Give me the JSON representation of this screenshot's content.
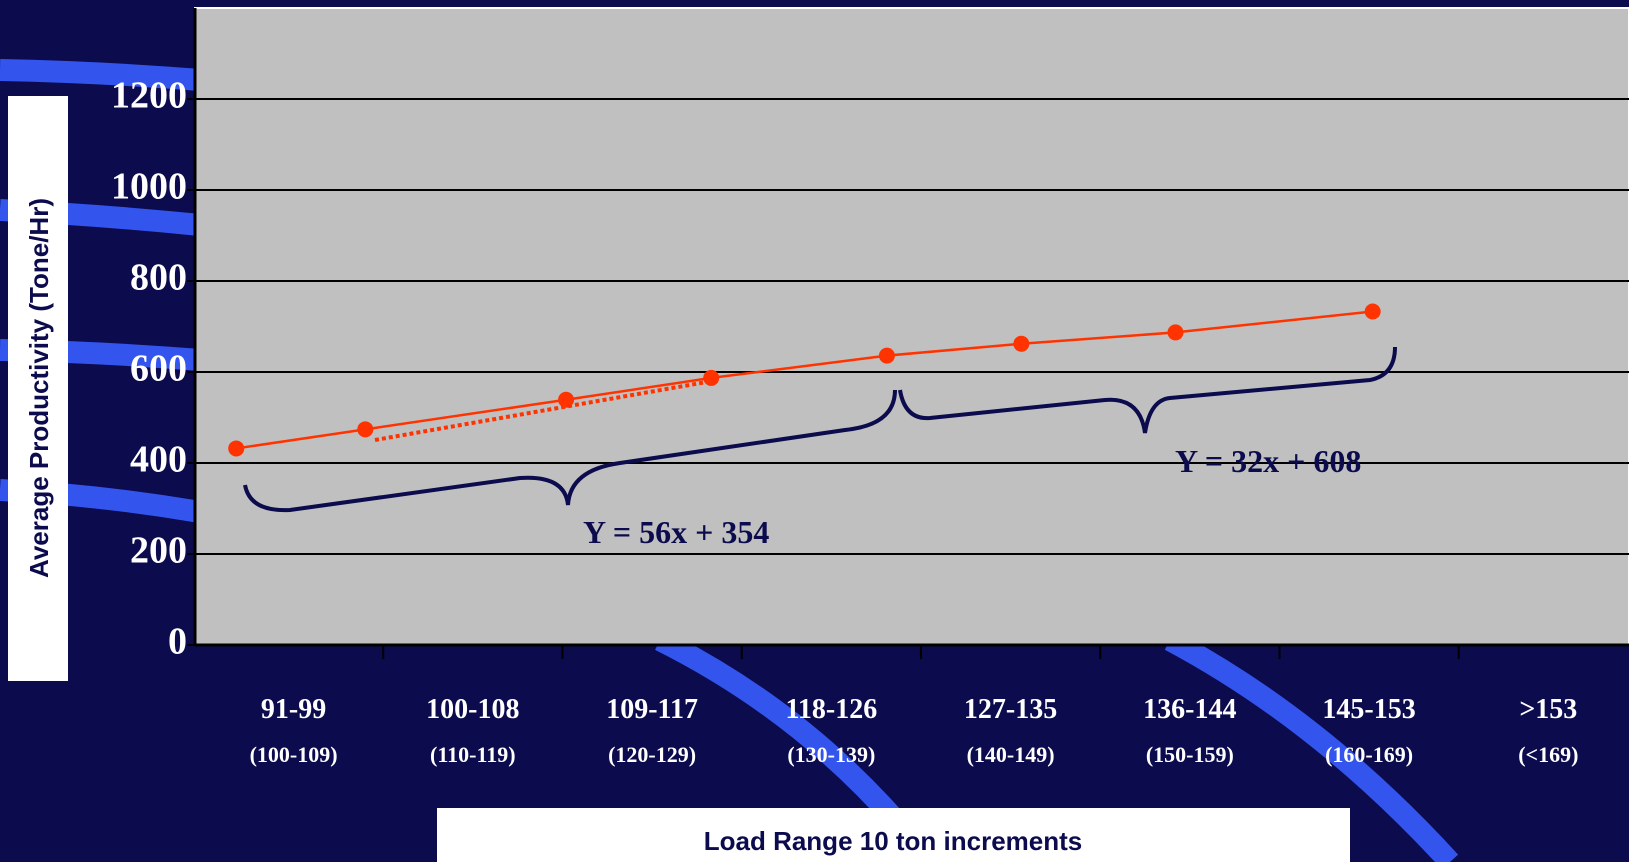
{
  "chart_data": {
    "type": "line",
    "y_axis_label": "Average Productivity (Tone/Hr)",
    "x_axis_label": "Load Range 10 ton increments",
    "categories": [
      "91-99",
      "100-108",
      "109-117",
      "118-126",
      "127-135",
      "136-144",
      "145-153",
      ">153"
    ],
    "category_sublabels": [
      "(100-109)",
      "(110-119)",
      "(120-129)",
      "(130-139)",
      "(140-149)",
      "(150-159)",
      "(160-169)",
      "(<169)"
    ],
    "x": [
      -0.32,
      0.4,
      1.52,
      2.33,
      3.31,
      4.06,
      4.92,
      6.02
    ],
    "xlim": [
      -0.55,
      7.45
    ],
    "series": [
      {
        "color": "#ff3300",
        "values": [
          432,
          474,
          539,
          587,
          636,
          662,
          687,
          733
        ]
      }
    ],
    "ylim": [
      0,
      1400
    ],
    "yticks": [
      0,
      200,
      400,
      600,
      800,
      1000,
      1200
    ],
    "grid": true,
    "annotations": [
      "Y = 56x + 354",
      "Y = 32x + 608"
    ]
  }
}
